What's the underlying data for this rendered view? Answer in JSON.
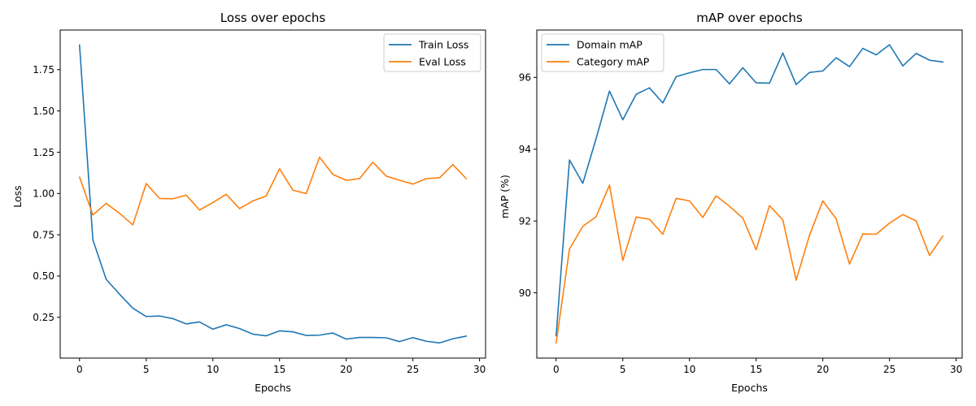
{
  "chart_data": [
    {
      "type": "line",
      "title": "Loss over epochs",
      "xlabel": "Epochs",
      "ylabel": "Loss",
      "xlim": [
        -1.45,
        30.45
      ],
      "ylim": [
        0.003,
        1.99
      ],
      "xticks": [
        0,
        5,
        10,
        15,
        20,
        25,
        30
      ],
      "yticks": [
        0.25,
        0.5,
        0.75,
        1.0,
        1.25,
        1.5,
        1.75
      ],
      "ytick_labels": [
        "0.25",
        "0.50",
        "0.75",
        "1.00",
        "1.25",
        "1.50",
        "1.75"
      ],
      "legend": "top-right",
      "grid": false,
      "x": [
        0,
        1,
        2,
        3,
        4,
        5,
        6,
        7,
        8,
        9,
        10,
        11,
        12,
        13,
        14,
        15,
        16,
        17,
        18,
        19,
        20,
        21,
        22,
        23,
        24,
        25,
        26,
        27,
        28,
        29
      ],
      "series": [
        {
          "name": "Train Loss",
          "color": "#1f77b4",
          "values": [
            1.9,
            0.72,
            0.48,
            0.39,
            0.305,
            0.255,
            0.258,
            0.242,
            0.21,
            0.222,
            0.178,
            0.205,
            0.182,
            0.148,
            0.138,
            0.168,
            0.162,
            0.14,
            0.142,
            0.155,
            0.118,
            0.128,
            0.128,
            0.126,
            0.103,
            0.127,
            0.105,
            0.095,
            0.12,
            0.136
          ]
        },
        {
          "name": "Eval Loss",
          "color": "#ff7f0e",
          "values": [
            1.1,
            0.87,
            0.94,
            0.88,
            0.81,
            1.06,
            0.97,
            0.968,
            0.99,
            0.9,
            0.945,
            0.995,
            0.908,
            0.955,
            0.985,
            1.15,
            1.02,
            1.0,
            1.22,
            1.115,
            1.08,
            1.09,
            1.19,
            1.105,
            1.08,
            1.057,
            1.09,
            1.095,
            1.175,
            1.09
          ]
        }
      ]
    },
    {
      "type": "line",
      "title": "mAP over epochs",
      "xlabel": "Epochs",
      "ylabel": "mAP (%)",
      "xlim": [
        -1.45,
        30.45
      ],
      "ylim": [
        88.18,
        97.32
      ],
      "xticks": [
        0,
        5,
        10,
        15,
        20,
        25,
        30
      ],
      "yticks": [
        90,
        92,
        94,
        96
      ],
      "ytick_labels": [
        "90",
        "92",
        "94",
        "96"
      ],
      "legend": "top-left",
      "grid": false,
      "x": [
        0,
        1,
        2,
        3,
        4,
        5,
        6,
        7,
        8,
        9,
        10,
        11,
        12,
        13,
        14,
        15,
        16,
        17,
        18,
        19,
        20,
        21,
        22,
        23,
        24,
        25,
        26,
        27,
        28,
        29
      ],
      "series": [
        {
          "name": "Domain mAP",
          "color": "#1f77b4",
          "values": [
            88.8,
            93.7,
            93.05,
            94.3,
            95.62,
            94.82,
            95.53,
            95.71,
            95.29,
            96.02,
            96.13,
            96.22,
            96.22,
            95.82,
            96.27,
            95.85,
            95.84,
            96.68,
            95.8,
            96.14,
            96.18,
            96.55,
            96.3,
            96.81,
            96.63,
            96.91,
            96.32,
            96.67,
            96.48,
            96.43
          ]
        },
        {
          "name": "Category mAP",
          "color": "#ff7f0e",
          "values": [
            88.6,
            91.22,
            91.85,
            92.12,
            93.0,
            90.9,
            92.11,
            92.05,
            91.63,
            92.63,
            92.56,
            92.1,
            92.7,
            92.41,
            92.08,
            91.2,
            92.43,
            92.03,
            90.35,
            91.6,
            92.56,
            92.06,
            90.8,
            91.64,
            91.63,
            91.94,
            92.18,
            92.0,
            91.04,
            91.58
          ]
        }
      ]
    }
  ]
}
